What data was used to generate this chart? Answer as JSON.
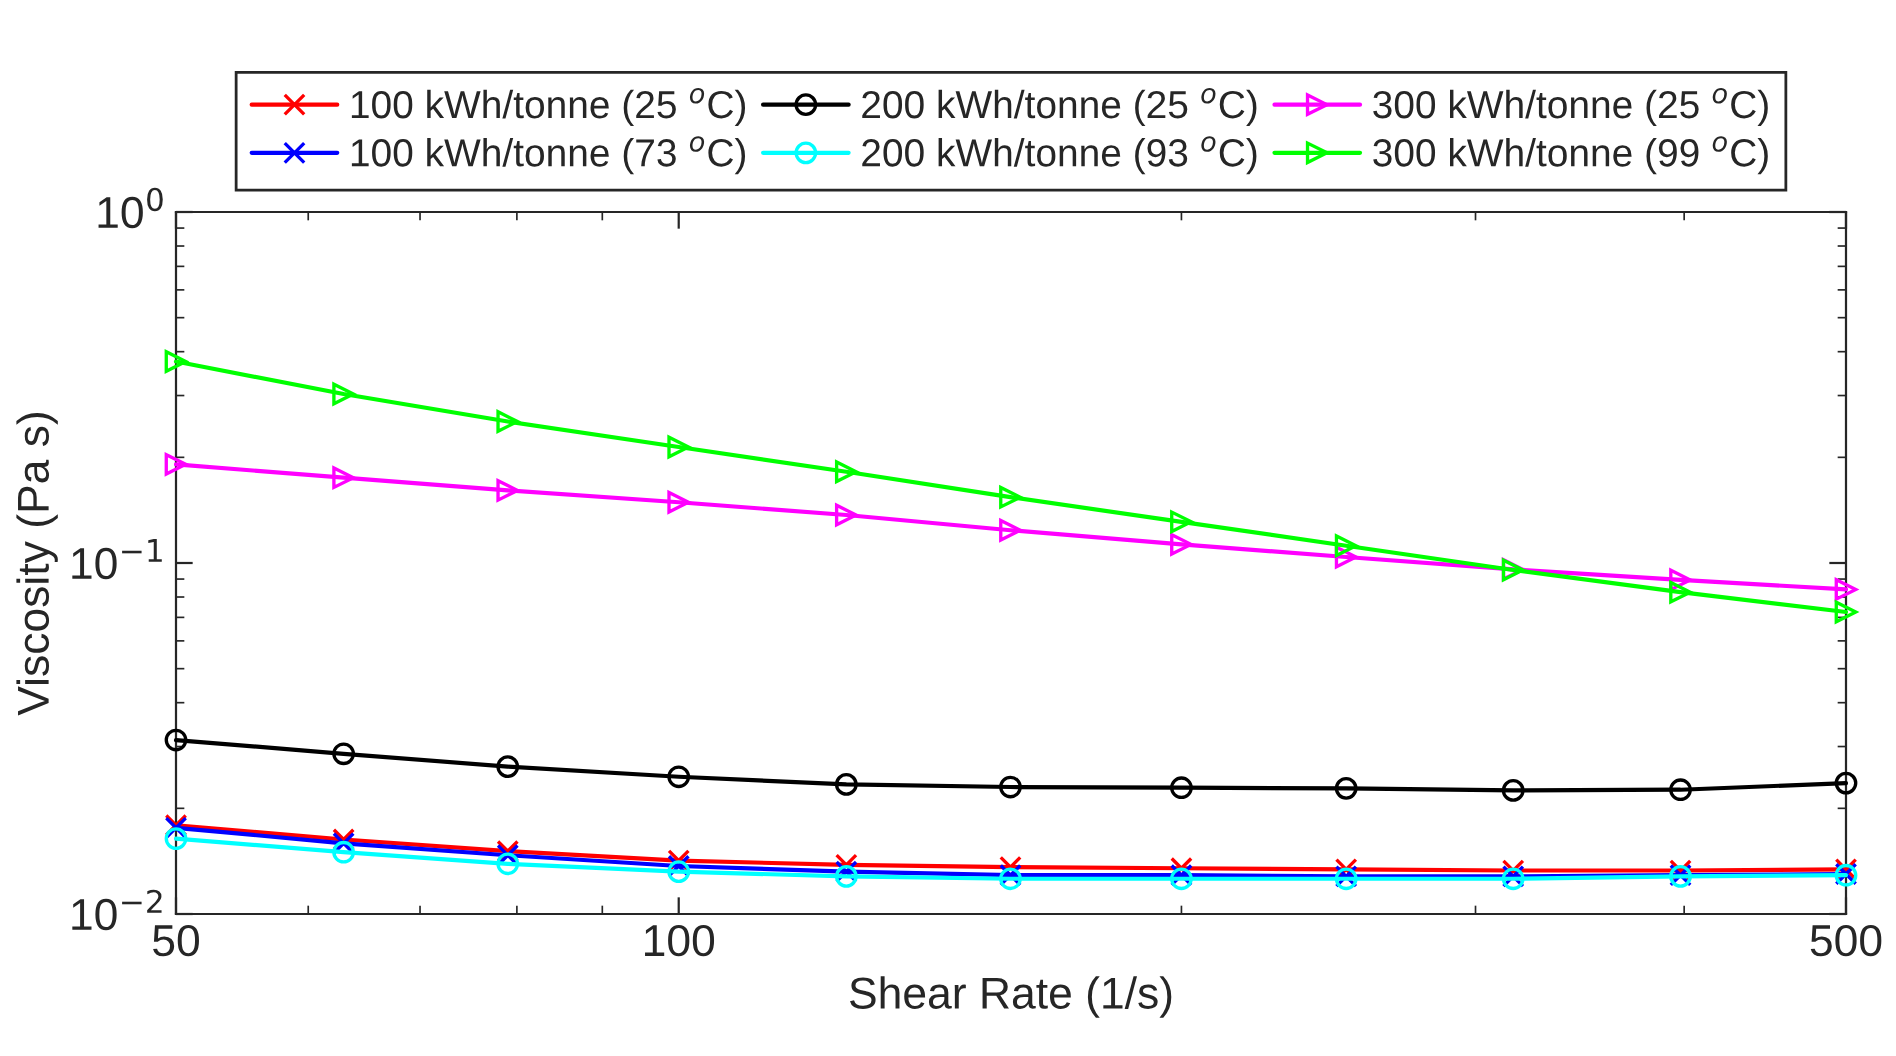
{
  "chart_data": {
    "type": "line",
    "xlabel": "Shear Rate (1/s)",
    "ylabel": "Viscosity (Pa s)",
    "log": "xy",
    "grid": false,
    "legend": "top",
    "line_style": "solid",
    "x": [
      50,
      63,
      79,
      100,
      126,
      158,
      200,
      251,
      316,
      398,
      500
    ],
    "xlim": [
      50,
      500
    ],
    "xticks": [
      50,
      100,
      500
    ],
    "ylim": [
      0.01,
      1
    ],
    "yticks": [
      {
        "value": 0.01,
        "label": "10$^{−2}$"
      },
      {
        "value": 0.1,
        "label": "10$^{−1}$"
      },
      {
        "value": 1,
        "label": "10$^{0}$"
      }
    ],
    "series": [
      {
        "name": "100 kWh/tonne (25 $^{o}$C)",
        "color": "#ff0000",
        "marker": "cross",
        "values": [
          0.0179,
          0.0163,
          0.0151,
          0.0142,
          0.0138,
          0.0136,
          0.0135,
          0.0134,
          0.0133,
          0.0133,
          0.0134
        ]
      },
      {
        "name": "100 kWh/tonne (73 $^{o}$C)",
        "color": "#0000ff",
        "marker": "cross",
        "values": [
          0.0176,
          0.0159,
          0.0147,
          0.0137,
          0.0132,
          0.0129,
          0.0129,
          0.0128,
          0.0128,
          0.0129,
          0.013
        ]
      },
      {
        "name": "200 kWh/tonne (25 $^{o}$C)",
        "color": "#000000",
        "marker": "circle",
        "values": [
          0.0313,
          0.0286,
          0.0263,
          0.0246,
          0.0234,
          0.023,
          0.0229,
          0.0228,
          0.0225,
          0.0226,
          0.0236
        ]
      },
      {
        "name": "200 kWh/tonne (93 $^{o}$C)",
        "color": "#00ffff",
        "marker": "circle",
        "values": [
          0.0164,
          0.015,
          0.0139,
          0.0132,
          0.0128,
          0.0126,
          0.0126,
          0.0126,
          0.0126,
          0.0128,
          0.0129
        ]
      },
      {
        "name": "300 kWh/tonne (25 $^{o}$C)",
        "color": "#ff00ff",
        "marker": "triangle",
        "values": [
          0.191,
          0.175,
          0.161,
          0.149,
          0.137,
          0.124,
          0.113,
          0.104,
          0.0959,
          0.0895,
          0.0841
        ]
      },
      {
        "name": "300 kWh/tonne (99 $^{o}$C)",
        "color": "#00ff00",
        "marker": "triangle",
        "values": [
          0.375,
          0.303,
          0.253,
          0.214,
          0.182,
          0.154,
          0.131,
          0.112,
          0.0955,
          0.0826,
          0.0725
        ]
      }
    ]
  }
}
